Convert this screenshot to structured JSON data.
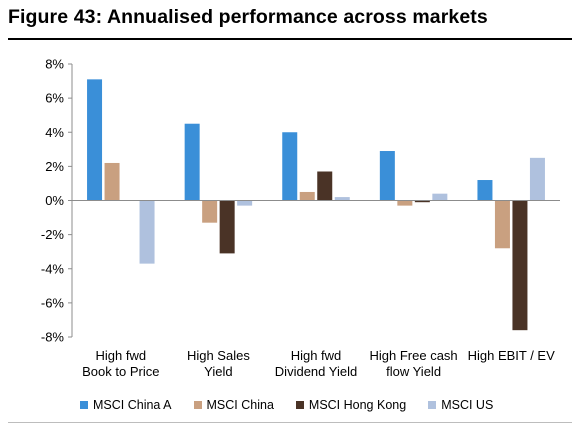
{
  "title": "Figure 43: Annualised performance across markets",
  "chart_data": {
    "type": "bar",
    "title": "",
    "xlabel": "",
    "ylabel": "",
    "ylim": [
      -8,
      8
    ],
    "yticks": [
      8,
      6,
      4,
      2,
      0,
      -2,
      -4,
      -6,
      -8
    ],
    "ytick_labels": [
      "8%",
      "6%",
      "4%",
      "2%",
      "0%",
      "-2%",
      "-4%",
      "-6%",
      "-8%"
    ],
    "grid": false,
    "legend_position": "bottom",
    "categories": [
      [
        "High fwd",
        "Book to Price"
      ],
      [
        "High Sales",
        "Yield"
      ],
      [
        "High fwd",
        "Dividend Yield"
      ],
      [
        "High Free cash",
        "flow Yield"
      ],
      [
        "High EBIT / EV"
      ]
    ],
    "series": [
      {
        "name": "MSCI China A",
        "color": "#3a8fd8",
        "values": [
          7.1,
          4.5,
          4.0,
          2.9,
          1.2
        ]
      },
      {
        "name": "MSCI China",
        "color": "#c9a080",
        "values": [
          2.2,
          -1.3,
          0.5,
          -0.3,
          -2.8
        ]
      },
      {
        "name": "MSCI Hong Kong",
        "color": "#4a3326",
        "values": [
          0.0,
          -3.1,
          1.7,
          -0.1,
          -7.6
        ]
      },
      {
        "name": "MSCI US",
        "color": "#afc1de",
        "values": [
          -3.7,
          -0.3,
          0.2,
          0.4,
          2.5
        ]
      }
    ]
  }
}
